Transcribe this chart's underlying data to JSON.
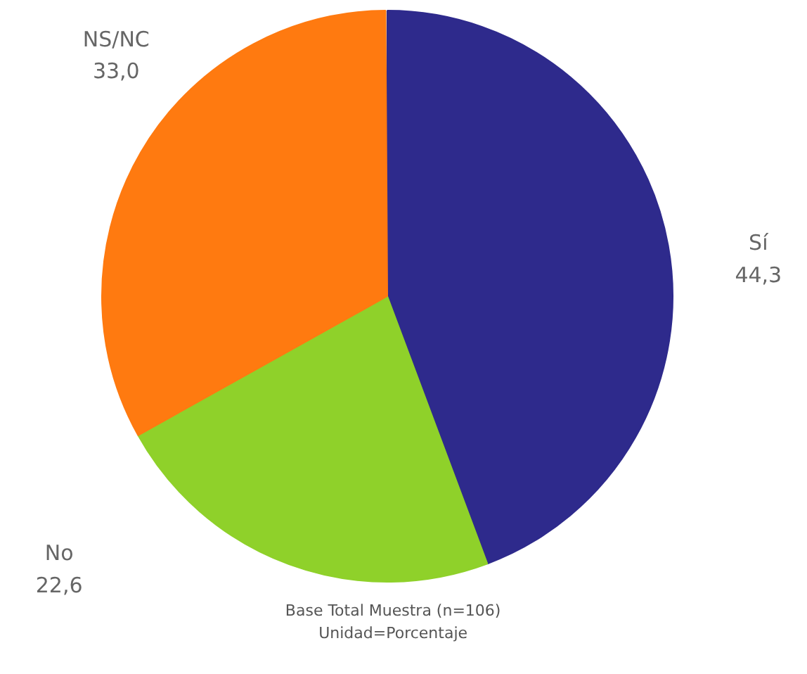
{
  "chart_data": {
    "type": "pie",
    "categories": [
      "Sí",
      "No",
      "NS/NC"
    ],
    "values": [
      44.3,
      22.6,
      33.0
    ],
    "value_labels": [
      "44,3",
      "22,6",
      "33,0"
    ],
    "colors": [
      "#2e2a8c",
      "#8fd12a",
      "#ff7a10"
    ],
    "annotations": [
      "Base Total Muestra (n=106)",
      "Unidad=Porcentaje"
    ]
  }
}
